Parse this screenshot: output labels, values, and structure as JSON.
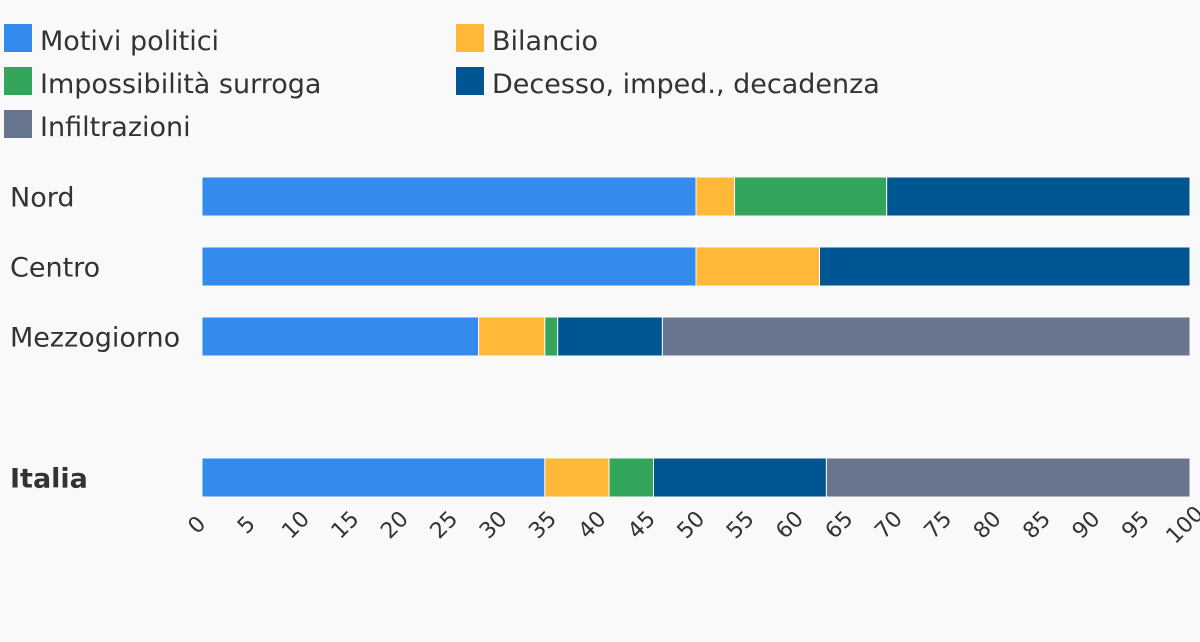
{
  "chart_data": {
    "type": "bar",
    "orientation": "horizontal",
    "stacked": true,
    "categories": [
      "Nord",
      "Centro",
      "Mezzogiorno",
      "Italia"
    ],
    "bold_categories": [
      "Italia"
    ],
    "series": [
      {
        "name": "Motivi politici",
        "color": "#338BED",
        "values": [
          50.0,
          50.0,
          28.0,
          34.7
        ]
      },
      {
        "name": "Bilancio",
        "color": "#FFB838",
        "values": [
          3.9,
          12.5,
          6.7,
          6.5
        ]
      },
      {
        "name": "Impossibilità surroga",
        "color": "#33A65C",
        "values": [
          15.4,
          0,
          1.3,
          4.5
        ]
      },
      {
        "name": "Decesso, imped., decadenza",
        "color": "#005693",
        "values": [
          30.7,
          37.5,
          10.6,
          17.5
        ]
      },
      {
        "name": "Infiltrazioni",
        "color": "#67768C",
        "values": [
          0,
          0,
          53.4,
          36.8
        ]
      }
    ],
    "xlim": [
      0,
      100
    ],
    "xticks": [
      0,
      5,
      10,
      15,
      20,
      25,
      30,
      35,
      40,
      45,
      50,
      55,
      60,
      65,
      70,
      75,
      80,
      85,
      90,
      95,
      100
    ],
    "legend_position": "top-left",
    "grid": false
  }
}
